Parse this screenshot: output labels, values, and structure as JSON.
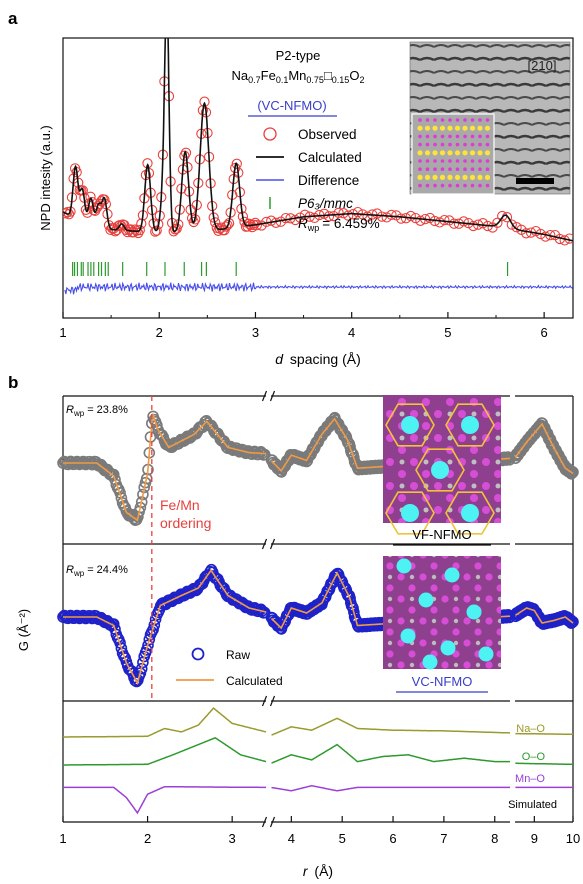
{
  "chart_data": [
    {
      "type": "scatter",
      "panel_label": "a",
      "title": "",
      "compound": {
        "line1": "P2-type",
        "formula_parts": [
          "Na",
          "0.7",
          "Fe",
          "0.1",
          "Mn",
          "0.75",
          "□",
          "0.15",
          "O",
          "2"
        ]
      },
      "sample_name": "(VC-NFMO)",
      "xlabel": "d spacing (Å)",
      "ylabel": "NPD intesity (a.u.)",
      "xlim": [
        1,
        6.3
      ],
      "xticks": [
        1,
        2,
        3,
        4,
        5,
        6
      ],
      "legend": {
        "placement": "top-right",
        "items": [
          {
            "label": "Observed",
            "marker": "circle",
            "color": "#e8413d"
          },
          {
            "label": "Calculated",
            "marker": "line",
            "color": "#111111"
          },
          {
            "label": "Difference",
            "marker": "line",
            "color": "#4a4ee8"
          },
          {
            "label": "P6₃/mmc",
            "marker": "tick",
            "color": "#2e9a2e"
          }
        ],
        "rwp_label": "R",
        "rwp_sub": "wp",
        "rwp_value": "= 6.459%"
      },
      "inset_label": "[210]",
      "background": [
        [
          1.0,
          0.3
        ],
        [
          1.2,
          0.24
        ],
        [
          1.5,
          0.19
        ],
        [
          2.0,
          0.17
        ],
        [
          2.5,
          0.18
        ],
        [
          3.0,
          0.22
        ],
        [
          3.5,
          0.27
        ],
        [
          4.0,
          0.29
        ],
        [
          4.5,
          0.27
        ],
        [
          5.0,
          0.24
        ],
        [
          5.5,
          0.21
        ],
        [
          6.0,
          0.16
        ],
        [
          6.3,
          0.12
        ]
      ],
      "peaks": [
        {
          "d": 1.13,
          "h": 0.32,
          "w": 0.025
        },
        {
          "d": 1.2,
          "h": 0.2,
          "w": 0.025
        },
        {
          "d": 1.29,
          "h": 0.16,
          "w": 0.025
        },
        {
          "d": 1.37,
          "h": 0.13,
          "w": 0.025
        },
        {
          "d": 1.43,
          "h": 0.18,
          "w": 0.025
        },
        {
          "d": 1.61,
          "h": 0.04,
          "w": 0.025
        },
        {
          "d": 1.88,
          "h": 0.42,
          "w": 0.03
        },
        {
          "d": 2.05,
          "h": 0.3,
          "w": 0.03
        },
        {
          "d": 2.08,
          "h": 1.28,
          "w": 0.022
        },
        {
          "d": 2.27,
          "h": 0.5,
          "w": 0.035
        },
        {
          "d": 2.47,
          "h": 0.8,
          "w": 0.045
        },
        {
          "d": 2.8,
          "h": 0.4,
          "w": 0.035
        },
        {
          "d": 5.6,
          "h": 0.08,
          "w": 0.05
        }
      ],
      "reflections": [
        1.1,
        1.12,
        1.15,
        1.19,
        1.21,
        1.26,
        1.29,
        1.32,
        1.37,
        1.4,
        1.44,
        1.47,
        1.62,
        1.87,
        2.06,
        2.26,
        2.44,
        2.49,
        2.8,
        5.62
      ],
      "ylim": [
        0,
        1.5
      ]
    },
    {
      "type": "line",
      "panel_label": "b",
      "xlabel": "r (Å)",
      "ylabel": "G (Å⁻²)",
      "x_axis_segments": [
        [
          1,
          3.4
        ],
        [
          3.6,
          8.3
        ],
        [
          8.5,
          10
        ]
      ],
      "xticks": [
        1,
        2,
        3,
        4,
        5,
        6,
        7,
        8,
        9,
        10
      ],
      "annotation_ordering": "Fe/Mn\nordering",
      "ordering_r": 2.05,
      "subpanels": [
        {
          "name": "top",
          "rwp_value": "= 23.8%",
          "structure_label": "VF-NFMO",
          "raw_color": "#7a7a7a",
          "fit_color": "#f09a45",
          "curve": [
            [
              1.0,
              0.0
            ],
            [
              1.4,
              0.0
            ],
            [
              1.6,
              -0.25
            ],
            [
              1.75,
              -0.95
            ],
            [
              1.88,
              -1.1
            ],
            [
              2.0,
              -0.2
            ],
            [
              2.06,
              0.95
            ],
            [
              2.12,
              0.65
            ],
            [
              2.25,
              0.3
            ],
            [
              2.55,
              0.55
            ],
            [
              2.7,
              0.8
            ],
            [
              2.95,
              0.3
            ],
            [
              3.2,
              0.2
            ],
            [
              3.4,
              0.18
            ],
            [
              3.6,
              0.05
            ],
            [
              3.8,
              -0.15
            ],
            [
              4.0,
              0.15
            ],
            [
              4.3,
              0.05
            ],
            [
              4.6,
              0.55
            ],
            [
              4.85,
              0.85
            ],
            [
              5.1,
              0.45
            ],
            [
              5.3,
              -0.1
            ],
            [
              8.5,
              0.1
            ],
            [
              8.8,
              0.4
            ],
            [
              9.2,
              0.75
            ],
            [
              9.5,
              0.3
            ],
            [
              9.8,
              -0.1
            ],
            [
              10.0,
              -0.2
            ]
          ]
        },
        {
          "name": "middle",
          "rwp_value": "= 24.4%",
          "structure_label": "VC-NFMO",
          "raw_color": "#1e22c8",
          "fit_color": "#f09a45",
          "legend_items": [
            {
              "label": "Raw",
              "marker": "circle",
              "color": "#1e22c8"
            },
            {
              "label": "Calculated",
              "marker": "line",
              "color": "#f09a45"
            }
          ],
          "curve": [
            [
              1.0,
              0.02
            ],
            [
              1.4,
              0.02
            ],
            [
              1.6,
              -0.15
            ],
            [
              1.75,
              -0.9
            ],
            [
              1.88,
              -1.3
            ],
            [
              2.0,
              -0.55
            ],
            [
              2.15,
              0.25
            ],
            [
              2.4,
              0.45
            ],
            [
              2.6,
              0.6
            ],
            [
              2.75,
              0.95
            ],
            [
              2.95,
              0.45
            ],
            [
              3.2,
              0.2
            ],
            [
              3.4,
              0.12
            ],
            [
              3.6,
              0.0
            ],
            [
              3.8,
              -0.2
            ],
            [
              4.0,
              0.2
            ],
            [
              4.3,
              0.1
            ],
            [
              4.6,
              0.3
            ],
            [
              4.9,
              0.9
            ],
            [
              5.15,
              0.4
            ],
            [
              5.3,
              -0.15
            ],
            [
              8.5,
              0.05
            ],
            [
              8.8,
              0.2
            ],
            [
              9.0,
              0.15
            ],
            [
              9.2,
              -0.1
            ],
            [
              9.5,
              -0.05
            ],
            [
              9.8,
              0.02
            ],
            [
              10.0,
              -0.1
            ]
          ]
        },
        {
          "name": "bottom",
          "label": "Simulated",
          "series": [
            {
              "name": "Na–O",
              "color": "#9a9a2e",
              "offset": 0.0,
              "curve": [
                [
                  1.0,
                  0.0
                ],
                [
                  2.0,
                  0.02
                ],
                [
                  2.2,
                  0.25
                ],
                [
                  2.4,
                  0.15
                ],
                [
                  2.6,
                  0.35
                ],
                [
                  2.78,
                  0.85
                ],
                [
                  3.0,
                  0.4
                ],
                [
                  3.4,
                  0.15
                ],
                [
                  3.6,
                  0.05
                ],
                [
                  4.0,
                  0.3
                ],
                [
                  4.4,
                  0.2
                ],
                [
                  4.9,
                  0.55
                ],
                [
                  5.3,
                  0.25
                ],
                [
                  6.0,
                  0.2
                ],
                [
                  7.0,
                  0.18
                ],
                [
                  8.3,
                  0.12
                ],
                [
                  8.5,
                  0.1
                ],
                [
                  10.0,
                  0.08
                ]
              ]
            },
            {
              "name": "O–O",
              "color": "#2e9a2e",
              "offset": -1.0,
              "curve": [
                [
                  1.0,
                  0.0
                ],
                [
                  2.0,
                  0.02
                ],
                [
                  2.3,
                  0.3
                ],
                [
                  2.55,
                  0.55
                ],
                [
                  2.8,
                  0.8
                ],
                [
                  3.1,
                  0.3
                ],
                [
                  3.4,
                  0.1
                ],
                [
                  3.6,
                  0.05
                ],
                [
                  4.0,
                  0.3
                ],
                [
                  4.4,
                  0.15
                ],
                [
                  4.9,
                  0.6
                ],
                [
                  5.3,
                  0.1
                ],
                [
                  5.8,
                  0.25
                ],
                [
                  6.3,
                  0.3
                ],
                [
                  6.8,
                  0.1
                ],
                [
                  7.4,
                  0.2
                ],
                [
                  8.0,
                  0.1
                ],
                [
                  8.3,
                  0.1
                ],
                [
                  8.5,
                  0.05
                ],
                [
                  10.0,
                  0.02
                ]
              ]
            },
            {
              "name": "Mn–O",
              "color": "#9b3fd6",
              "offset": -1.8,
              "curve": [
                [
                  1.0,
                  0.0
                ],
                [
                  1.6,
                  0.0
                ],
                [
                  1.75,
                  -0.3
                ],
                [
                  1.88,
                  -0.75
                ],
                [
                  2.0,
                  -0.2
                ],
                [
                  2.2,
                  0.02
                ],
                [
                  3.4,
                  0.0
                ],
                [
                  3.6,
                  0.0
                ],
                [
                  4.0,
                  -0.1
                ],
                [
                  4.4,
                  0.05
                ],
                [
                  4.9,
                  -0.1
                ],
                [
                  5.3,
                  0.0
                ],
                [
                  8.3,
                  0.0
                ],
                [
                  8.5,
                  0.0
                ],
                [
                  10.0,
                  0.0
                ]
              ]
            }
          ]
        }
      ]
    }
  ]
}
